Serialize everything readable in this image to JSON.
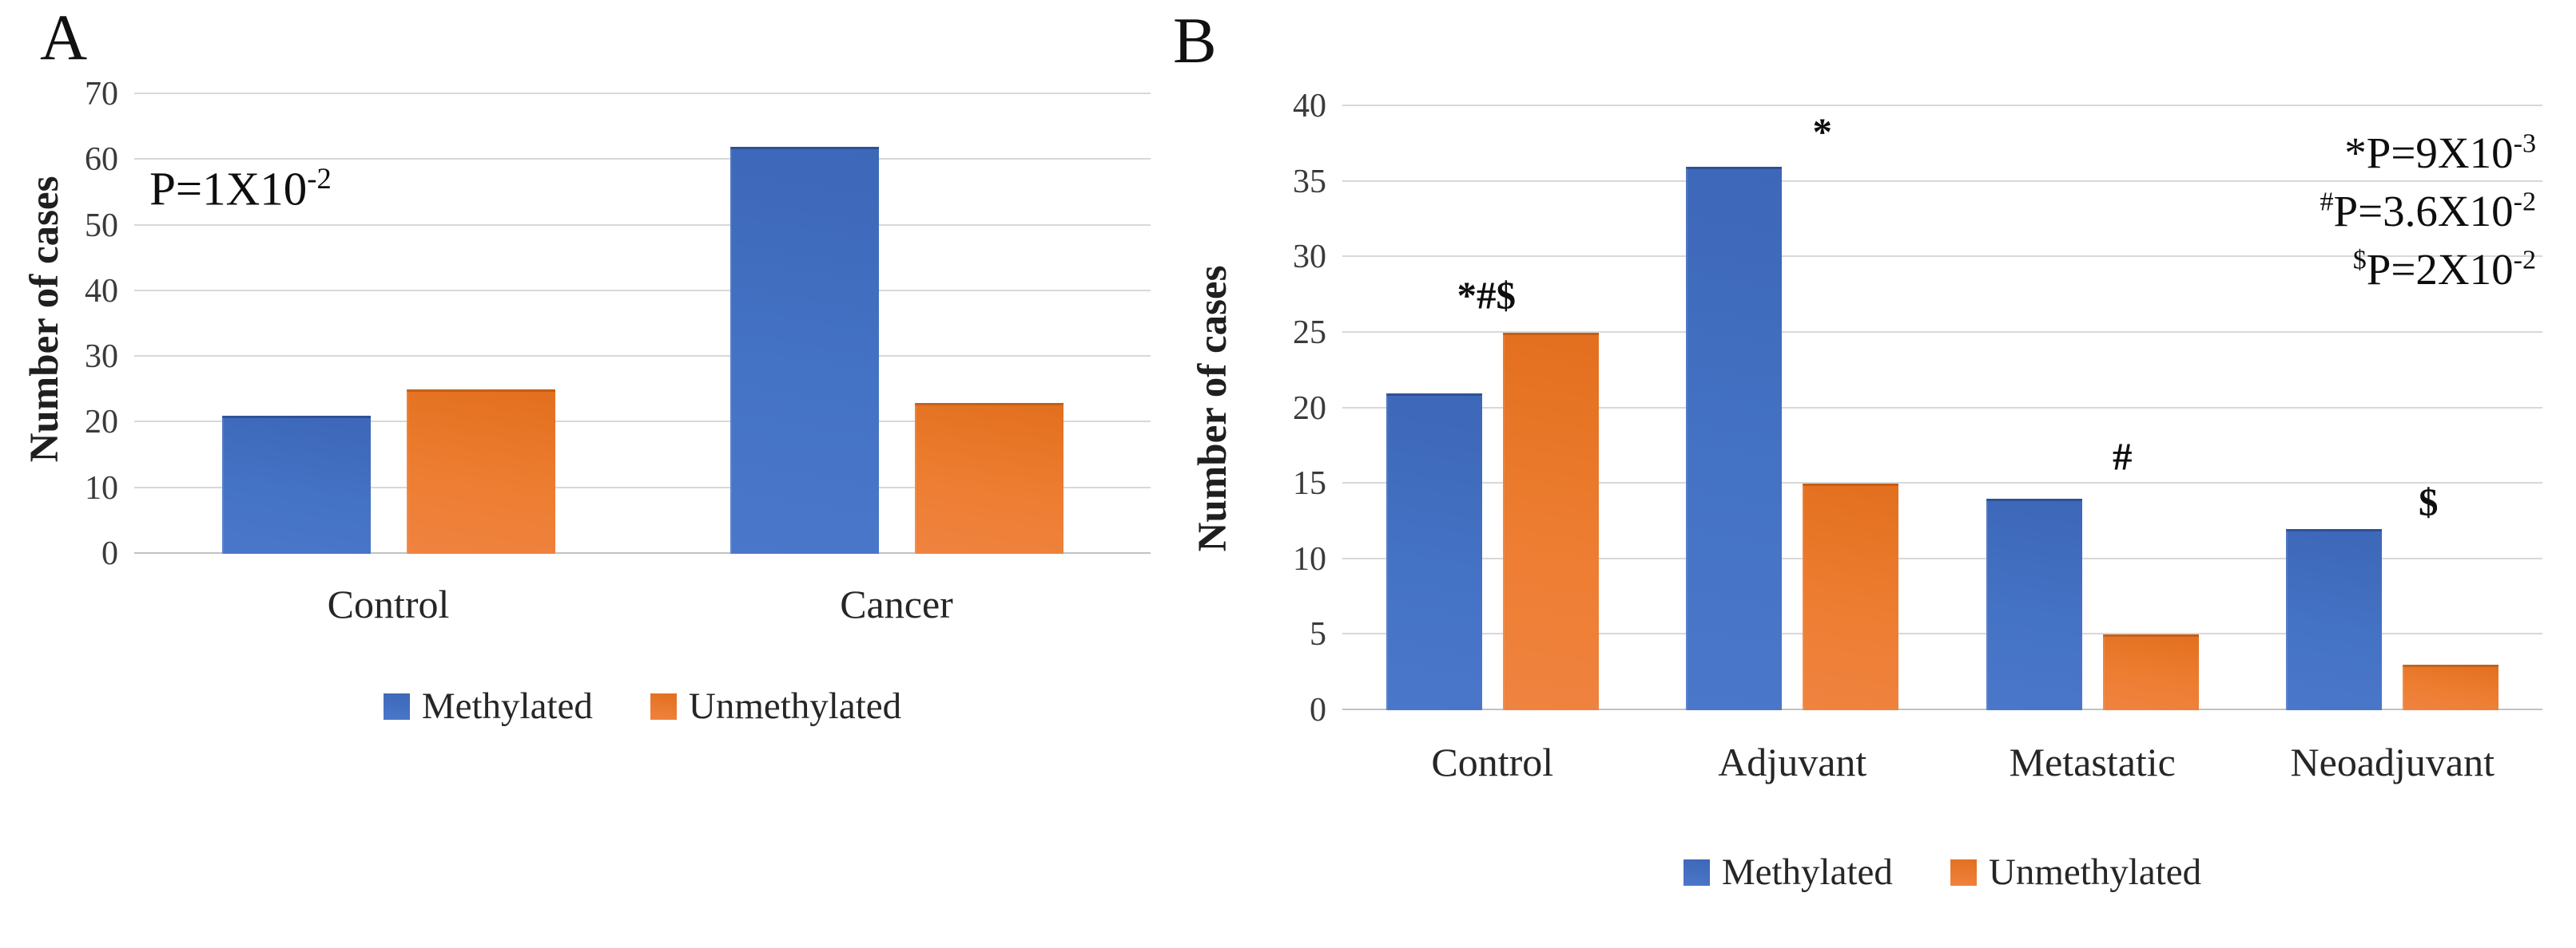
{
  "figure": {
    "background_color": "#ffffff",
    "series_colors": {
      "methylated": "#4472C4",
      "unmethylated": "#ED7D31"
    }
  },
  "chart_data": [
    {
      "type": "bar",
      "panel_label": "A",
      "categories": [
        "Control",
        "Cancer"
      ],
      "series": [
        {
          "name": "Methylated",
          "color": "#4472C4",
          "values": [
            21,
            62
          ]
        },
        {
          "name": "Unmethylated",
          "color": "#ED7D31",
          "values": [
            25,
            23
          ]
        }
      ],
      "xlabel": "",
      "ylabel": "Number of cases",
      "ylim": [
        0,
        70
      ],
      "ytick_step": 10,
      "grid": true,
      "legend_position": "bottom",
      "annotations": [
        {
          "base": "P=1X10",
          "exp": "-2",
          "x_pct": 1.5,
          "y_value": 55.5
        }
      ]
    },
    {
      "type": "bar",
      "panel_label": "B",
      "categories": [
        "Control",
        "Adjuvant",
        "Metastatic",
        "Neoadjuvant"
      ],
      "series": [
        {
          "name": "Methylated",
          "color": "#4472C4",
          "values": [
            21,
            36,
            14,
            12
          ]
        },
        {
          "name": "Unmethylated",
          "color": "#ED7D31",
          "values": [
            25,
            15,
            5,
            3
          ]
        }
      ],
      "xlabel": "",
      "ylabel": "Number of cases",
      "ylim": [
        0,
        40
      ],
      "ytick_step": 5,
      "grid": true,
      "legend_position": "bottom",
      "sig_markers": [
        {
          "text": "*#$",
          "group": 0,
          "x_pct": 48,
          "y_value": 27.5
        },
        {
          "text": "*",
          "group": 1,
          "x_pct": 60,
          "y_value": 38.3
        },
        {
          "text": "#",
          "group": 2,
          "x_pct": 60,
          "y_value": 16.8
        },
        {
          "text": "$",
          "group": 3,
          "x_pct": 62,
          "y_value": 13.8
        }
      ],
      "p_annotations": [
        {
          "sym": "*",
          "sym_is_sup": false,
          "base": "P=9X10",
          "exp": "-3"
        },
        {
          "sym": "#",
          "sym_is_sup": true,
          "base": "P=3.6X10",
          "exp": "-2"
        },
        {
          "sym": "$",
          "sym_is_sup": true,
          "base": "P=2X10",
          "exp": "-2"
        }
      ]
    }
  ]
}
